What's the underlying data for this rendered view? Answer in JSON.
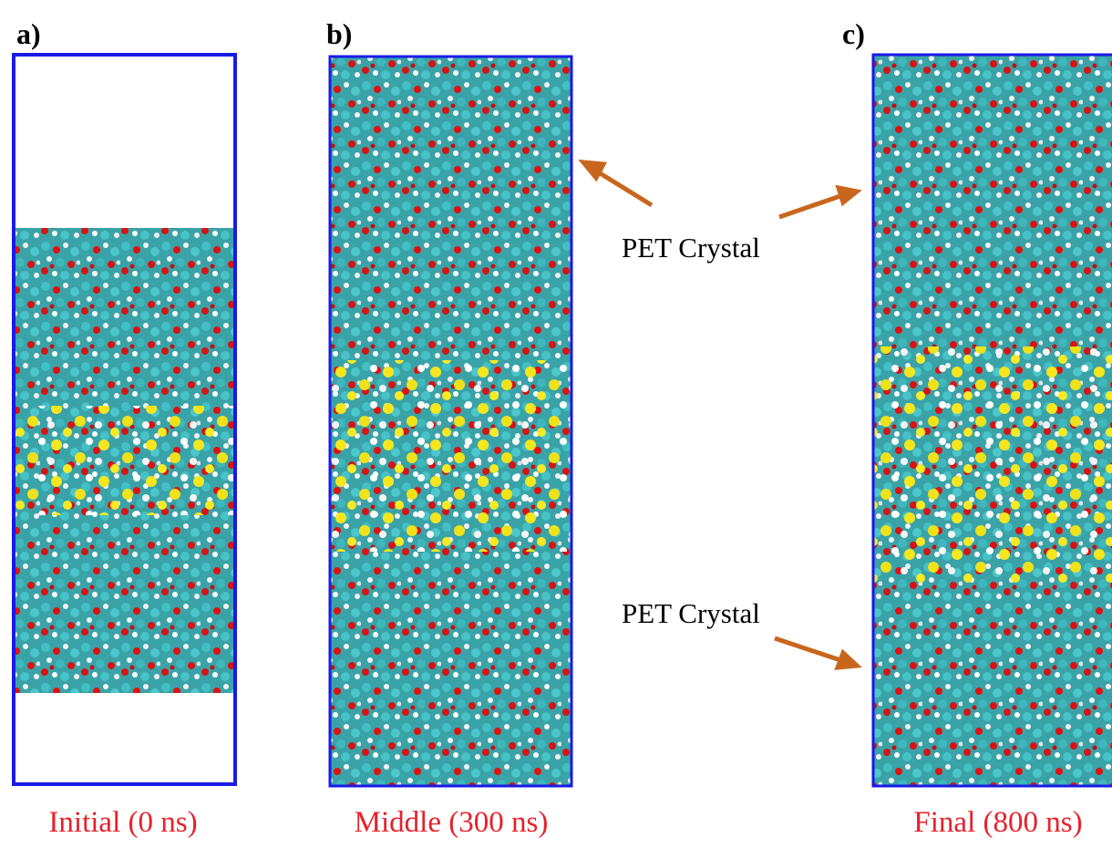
{
  "panels": [
    {
      "label": "a)",
      "caption": "Initial (0 ns)"
    },
    {
      "label": "b)",
      "caption": "Middle (300 ns)"
    },
    {
      "label": "c)",
      "caption": "Final (800 ns)"
    }
  ],
  "annotations": [
    "PET Crystal",
    "PET Crystal"
  ]
}
